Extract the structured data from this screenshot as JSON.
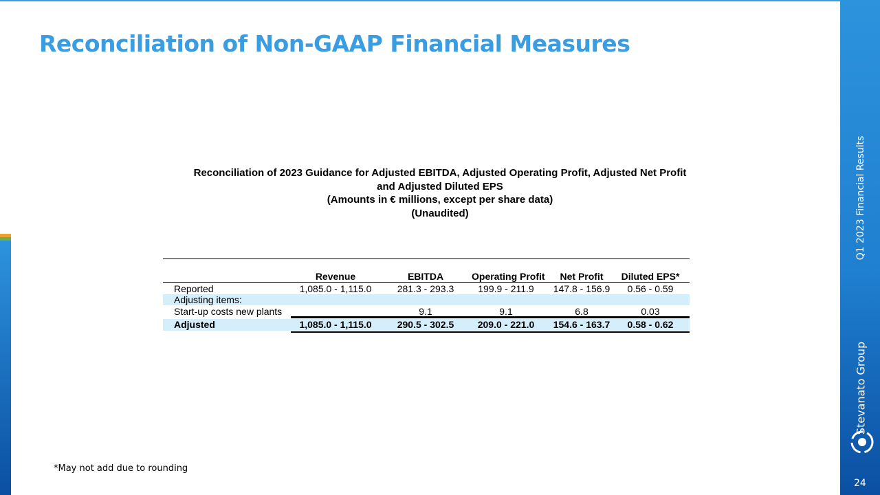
{
  "header": {
    "title": "Reconciliation of Non-GAAP Financial Measures"
  },
  "table": {
    "caption": [
      "Reconciliation of 2023 Guidance for Adjusted EBITDA, Adjusted Operating Profit, Adjusted Net Profit and Adjusted Diluted EPS",
      "(Amounts in € millions, except per share data)",
      "(Unaudited)"
    ],
    "columns": [
      "Revenue",
      "EBITDA",
      "Operating Profit",
      "Net Profit",
      "Diluted EPS*"
    ],
    "rows": [
      {
        "label": "Reported",
        "cells": [
          "1,085.0 - 1,115.0",
          "281.3 - 293.3",
          "199.9 - 211.9",
          "147.8 - 156.9",
          "0.56 - 0.59"
        ]
      },
      {
        "label": "Adjusting items:",
        "cells": [
          null,
          null,
          null,
          null,
          null
        ]
      },
      {
        "label": "Start-up costs new plants",
        "cells": [
          null,
          "9.1",
          "9.1",
          "6.8",
          "0.03"
        ]
      },
      {
        "label": "Adjusted",
        "cells": [
          "1,085.0 - 1,115.0",
          "290.5 - 302.5",
          "209.0 - 221.0",
          "154.6 - 163.7",
          "0.58 - 0.62"
        ]
      }
    ]
  },
  "footnote": "*May not add due to rounding",
  "sidebar": {
    "subtitle": "Q1 2023 Financial Results",
    "brand": "Stevanato Group",
    "page_number": "24"
  }
}
